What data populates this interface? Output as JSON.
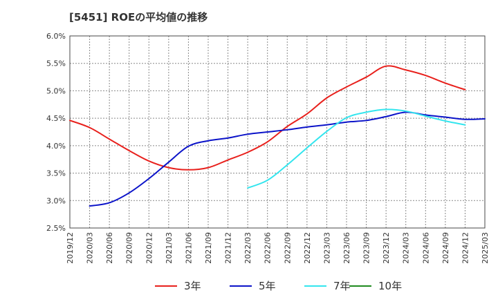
{
  "chart_data": {
    "type": "line",
    "title": "[5451]  ROEの平均値の推移",
    "xlabel": "",
    "ylabel": "",
    "ylim": [
      2.5,
      6.0
    ],
    "yticks": [
      "2.5%",
      "3.0%",
      "3.5%",
      "4.0%",
      "4.5%",
      "5.0%",
      "5.5%",
      "6.0%"
    ],
    "ytick_values": [
      2.5,
      3.0,
      3.5,
      4.0,
      4.5,
      5.0,
      5.5,
      6.0
    ],
    "x_ticks": [
      "2019/12",
      "2020/03",
      "2020/06",
      "2020/09",
      "2020/12",
      "2021/03",
      "2021/06",
      "2021/09",
      "2021/12",
      "2022/03",
      "2022/06",
      "2022/09",
      "2022/12",
      "2023/03",
      "2023/06",
      "2023/09",
      "2023/12",
      "2024/03",
      "2024/06",
      "2024/09",
      "2024/12",
      "2025/03"
    ],
    "grid": true,
    "legend_position": "bottom",
    "series": [
      {
        "name": "3年",
        "color": "#e8201c",
        "start_index": 0,
        "values": [
          4.46,
          4.33,
          4.12,
          3.91,
          3.72,
          3.6,
          3.56,
          3.6,
          3.74,
          3.88,
          4.07,
          4.35,
          4.58,
          4.87,
          5.07,
          5.25,
          5.45,
          5.38,
          5.28,
          5.14,
          5.02
        ]
      },
      {
        "name": "5年",
        "color": "#0b13c9",
        "start_index": 1,
        "values": [
          2.9,
          2.96,
          3.14,
          3.4,
          3.7,
          3.99,
          4.09,
          4.14,
          4.21,
          4.25,
          4.29,
          4.34,
          4.38,
          4.43,
          4.46,
          4.53,
          4.61,
          4.56,
          4.52,
          4.48,
          4.49
        ]
      },
      {
        "name": "7年",
        "color": "#33e5ee",
        "start_index": 9,
        "values": [
          3.23,
          3.37,
          3.65,
          3.96,
          4.26,
          4.51,
          4.61,
          4.66,
          4.63,
          4.54,
          4.45,
          4.38
        ]
      },
      {
        "name": "10年",
        "color": "#1e8a1e",
        "start_index": 0,
        "values": []
      }
    ]
  }
}
